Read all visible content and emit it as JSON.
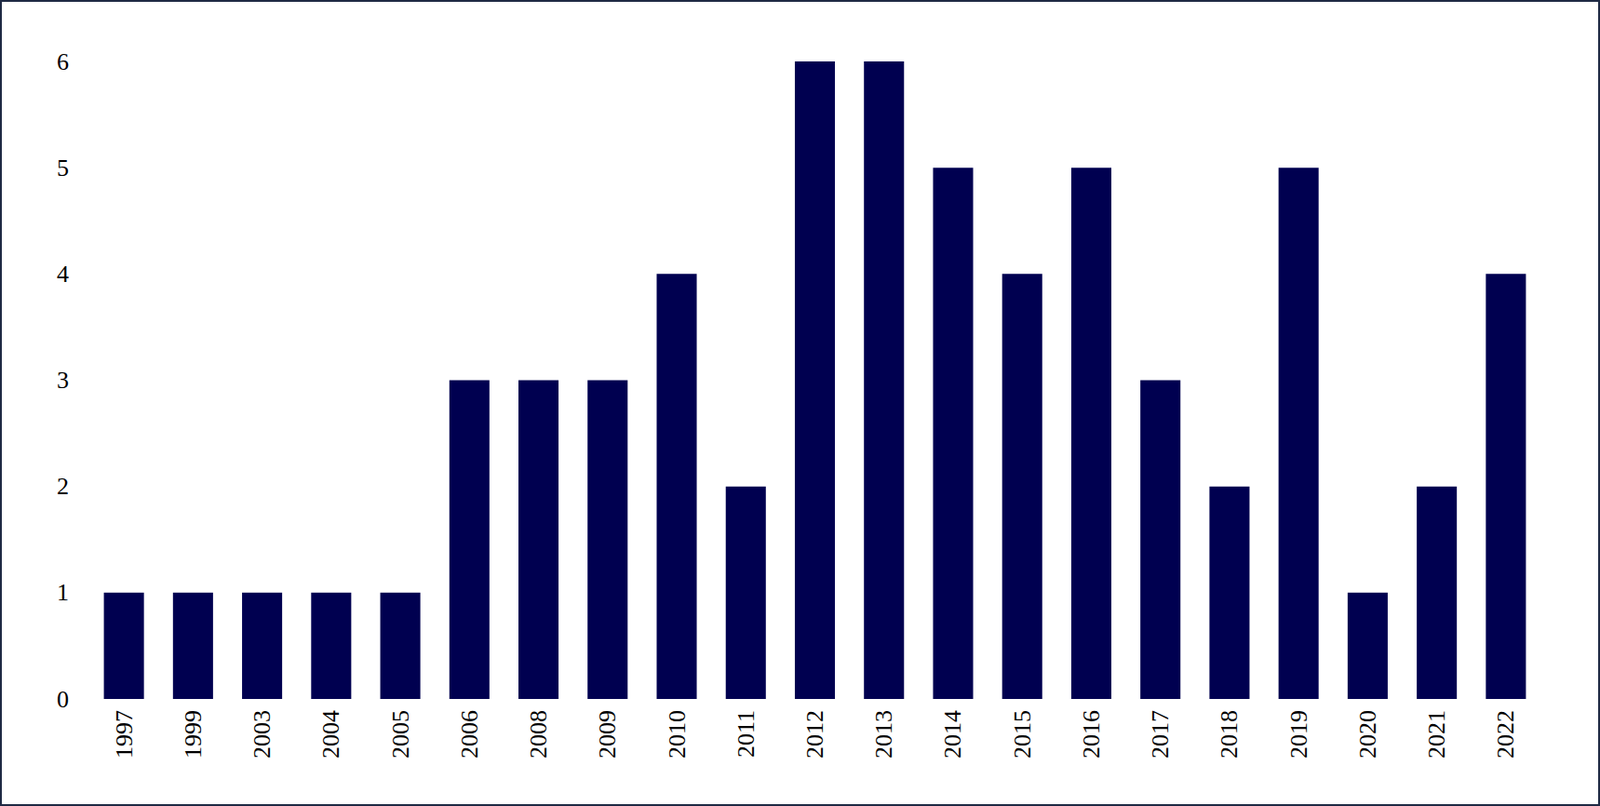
{
  "chart_data": {
    "type": "bar",
    "categories": [
      "1997",
      "1999",
      "2003",
      "2004",
      "2005",
      "2006",
      "2008",
      "2009",
      "2010",
      "2011",
      "2012",
      "2013",
      "2014",
      "2015",
      "2016",
      "2017",
      "2018",
      "2019",
      "2020",
      "2021",
      "2022"
    ],
    "values": [
      1,
      1,
      1,
      1,
      1,
      3,
      3,
      3,
      4,
      2,
      6,
      6,
      5,
      4,
      5,
      3,
      2,
      5,
      1,
      2,
      4
    ],
    "color": "#000050",
    "ylim": [
      0,
      6
    ],
    "yticks": [
      0,
      1,
      2,
      3,
      4,
      5,
      6
    ],
    "grid": false
  }
}
